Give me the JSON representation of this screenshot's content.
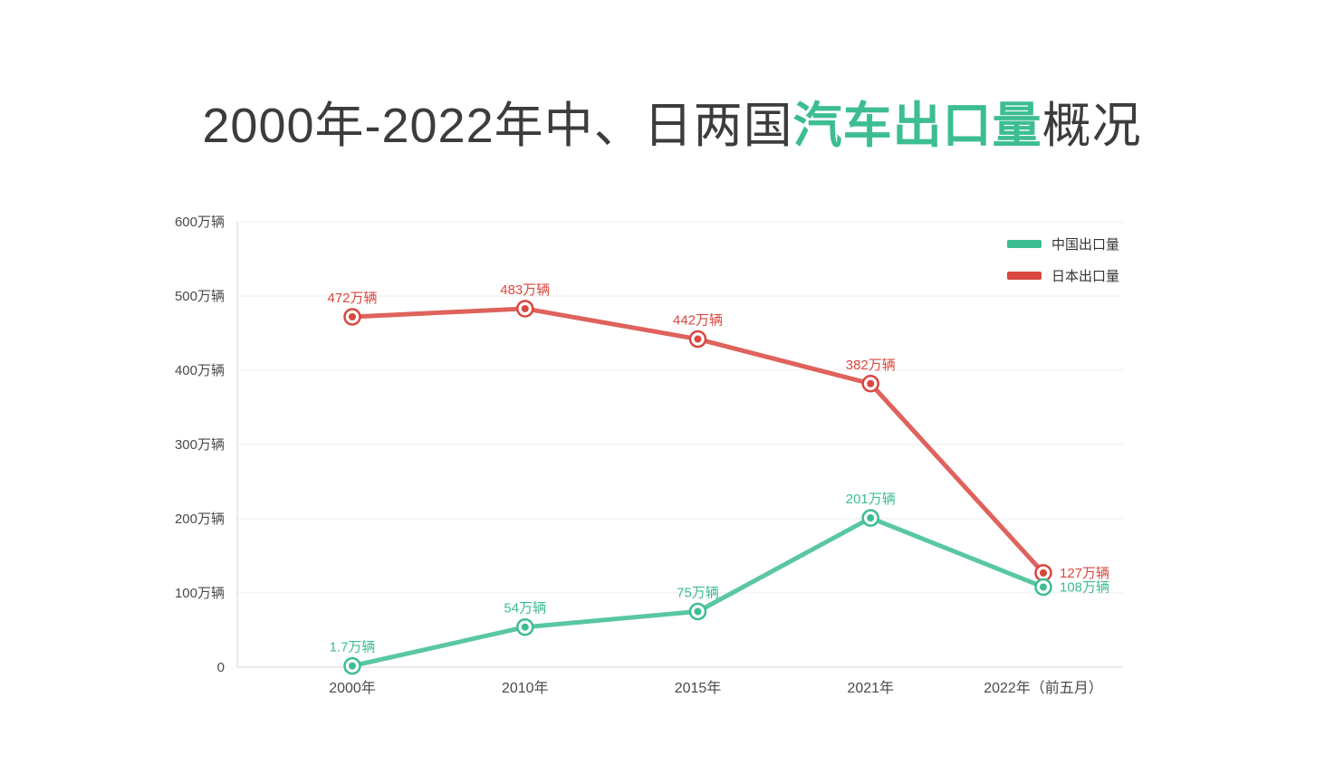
{
  "title": {
    "prefix": "2000年-2022年中、日两国",
    "highlight": "汽车出口量",
    "suffix": "概况"
  },
  "colors": {
    "green": "#3cbd92",
    "red": "#d9473f",
    "title_dark": "#3c3c3c",
    "axis_text": "#4a4a4a",
    "gridline": "#ededed",
    "axis_line": "#d6d6d6"
  },
  "chart_data": {
    "type": "line",
    "title": "2000年-2022年中、日两国汽车出口量概况",
    "categories": [
      "2000年",
      "2010年",
      "2015年",
      "2021年",
      "2022年（前五月）"
    ],
    "unit": "万辆",
    "ylim": [
      0,
      600
    ],
    "grid": true,
    "legend_position": "top-right",
    "y_ticks": [
      {
        "v": 600,
        "label": "600万辆"
      },
      {
        "v": 500,
        "label": "500万辆"
      },
      {
        "v": 400,
        "label": "400万辆"
      },
      {
        "v": 300,
        "label": "300万辆"
      },
      {
        "v": 200,
        "label": "200万辆"
      },
      {
        "v": 100,
        "label": "100万辆"
      },
      {
        "v": 0,
        "label": "0"
      }
    ],
    "series": [
      {
        "name": "日本出口量",
        "key": "japan",
        "color": "#d9473f",
        "values": [
          472,
          483,
          442,
          382,
          127
        ],
        "labels": [
          "472万辆",
          "483万辆",
          "442万辆",
          "382万辆",
          "127万辆"
        ],
        "label_pos": [
          "top",
          "top",
          "top",
          "top",
          "right"
        ]
      },
      {
        "name": "中国出口量",
        "key": "china",
        "color": "#3cbd92",
        "values": [
          1.7,
          54,
          75,
          201,
          108
        ],
        "labels": [
          "1.7万辆",
          "54万辆",
          "75万辆",
          "201万辆",
          "108万辆"
        ],
        "label_pos": [
          "top",
          "top",
          "top",
          "top",
          "right"
        ]
      }
    ]
  }
}
